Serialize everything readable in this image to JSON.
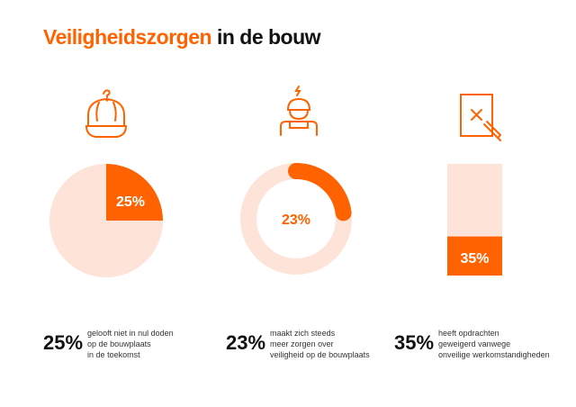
{
  "title": {
    "highlight": "Veiligheidszorgen",
    "rest": "in de bouw"
  },
  "colors": {
    "accent": "#ff6200",
    "light": "#fde3d8"
  },
  "icons": [
    "helmet-question-icon",
    "worker-lightning-icon",
    "document-cross-pencil-icon"
  ],
  "chart_data": [
    {
      "type": "pie",
      "values": [
        25,
        75
      ],
      "label": "25%"
    },
    {
      "type": "donut",
      "values": [
        23,
        77
      ],
      "label": "23%"
    },
    {
      "type": "bar",
      "values": [
        35
      ],
      "ylim": [
        0,
        100
      ],
      "label": "35%"
    }
  ],
  "stats": [
    {
      "value": "25%",
      "text": "gelooft niet in nul doden\nop de bouwplaats\nin de toekomst"
    },
    {
      "value": "23%",
      "text": "maakt zich steeds\nmeer zorgen over\nveiligheid op de bouwplaats"
    },
    {
      "value": "35%",
      "text": "heeft opdrachten\ngeweigerd vanwege\nonveilige werkomstandigheden"
    }
  ]
}
